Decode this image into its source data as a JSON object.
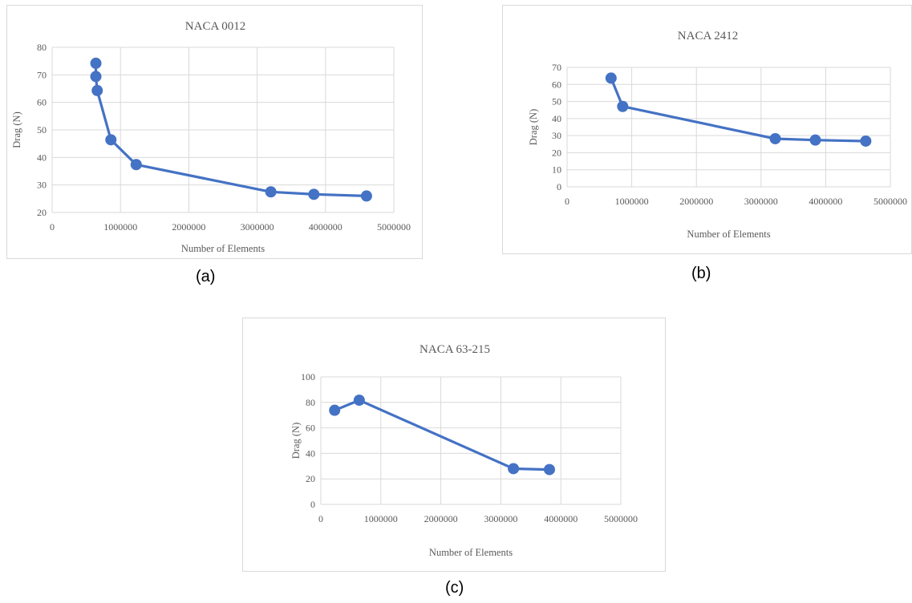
{
  "captions": {
    "a": "(a)",
    "b": "(b)",
    "c": "(c)"
  },
  "style": {
    "series_color": "#4472c4",
    "grid_color": "#d9d9d9",
    "text_color": "#595959"
  },
  "chart_data": [
    {
      "type": "line",
      "title": "NACA 0012",
      "xlabel": "Number of Elements",
      "ylabel": "Drag (N)",
      "xlim": [
        0,
        5000000
      ],
      "ylim": [
        20,
        80
      ],
      "xticks": [
        0,
        1000000,
        2000000,
        3000000,
        4000000,
        5000000
      ],
      "yticks": [
        20,
        30,
        40,
        50,
        60,
        70,
        80
      ],
      "grid": true,
      "legend": "none",
      "series": [
        {
          "x": [
            640000,
            640000,
            660000,
            860000,
            1230000,
            3200000,
            3830000,
            4600000
          ],
          "y": [
            74.2,
            69.4,
            64.3,
            46.4,
            37.4,
            27.5,
            26.6,
            26.0
          ]
        }
      ]
    },
    {
      "type": "line",
      "title": "NACA 2412",
      "xlabel": "Number of Elements",
      "ylabel": "Drag (N)",
      "xlim": [
        0,
        5000000
      ],
      "ylim": [
        0,
        70
      ],
      "xticks": [
        0,
        1000000,
        2000000,
        3000000,
        4000000,
        5000000
      ],
      "yticks": [
        0,
        10,
        20,
        30,
        40,
        50,
        60,
        70
      ],
      "grid": true,
      "legend": "none",
      "series": [
        {
          "x": [
            680000,
            860000,
            3220000,
            3840000,
            4620000
          ],
          "y": [
            63.7,
            47.1,
            28.2,
            27.4,
            26.8
          ]
        }
      ]
    },
    {
      "type": "line",
      "title": "NACA 63-215",
      "xlabel": "Number of Elements",
      "ylabel": "Drag  (N)",
      "xlim": [
        0,
        5000000
      ],
      "ylim": [
        0,
        100
      ],
      "xticks": [
        0,
        1000000,
        2000000,
        3000000,
        4000000,
        5000000
      ],
      "yticks": [
        0,
        20,
        40,
        60,
        80,
        100
      ],
      "grid": true,
      "legend": "none",
      "series": [
        {
          "x": [
            230000,
            640000,
            3210000,
            3810000
          ],
          "y": [
            73.8,
            81.7,
            28.0,
            27.3
          ]
        }
      ]
    }
  ]
}
